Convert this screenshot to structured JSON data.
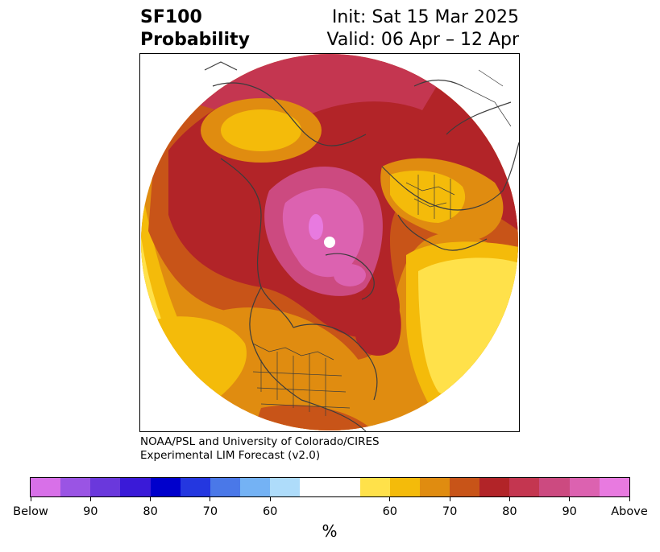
{
  "title": {
    "line1": "SF100",
    "line2": "Probability",
    "init": "Init: Sat 15 Mar 2025",
    "valid": "Valid: 06 Apr – 12 Apr"
  },
  "credit": {
    "line1": "NOAA/PSL and University of Colorado/CIRES",
    "line2": "Experimental LIM Forecast (v2.0)"
  },
  "colorbar": {
    "unit": "%",
    "colors": [
      "#d870e8",
      "#9a54e4",
      "#6a38dc",
      "#3a1ad8",
      "#0000cc",
      "#2437e0",
      "#4a78e8",
      "#74b2f4",
      "#aedcfa",
      "#ffffff",
      "#ffffff",
      "#ffe14a",
      "#f4bb0a",
      "#e08c10",
      "#c85418",
      "#b22428",
      "#c43650",
      "#cc4a80",
      "#dc62b0",
      "#e87ae0"
    ],
    "ticks": [
      "Below",
      "90",
      "80",
      "70",
      "60",
      "60",
      "70",
      "80",
      "90",
      "Above"
    ]
  }
}
